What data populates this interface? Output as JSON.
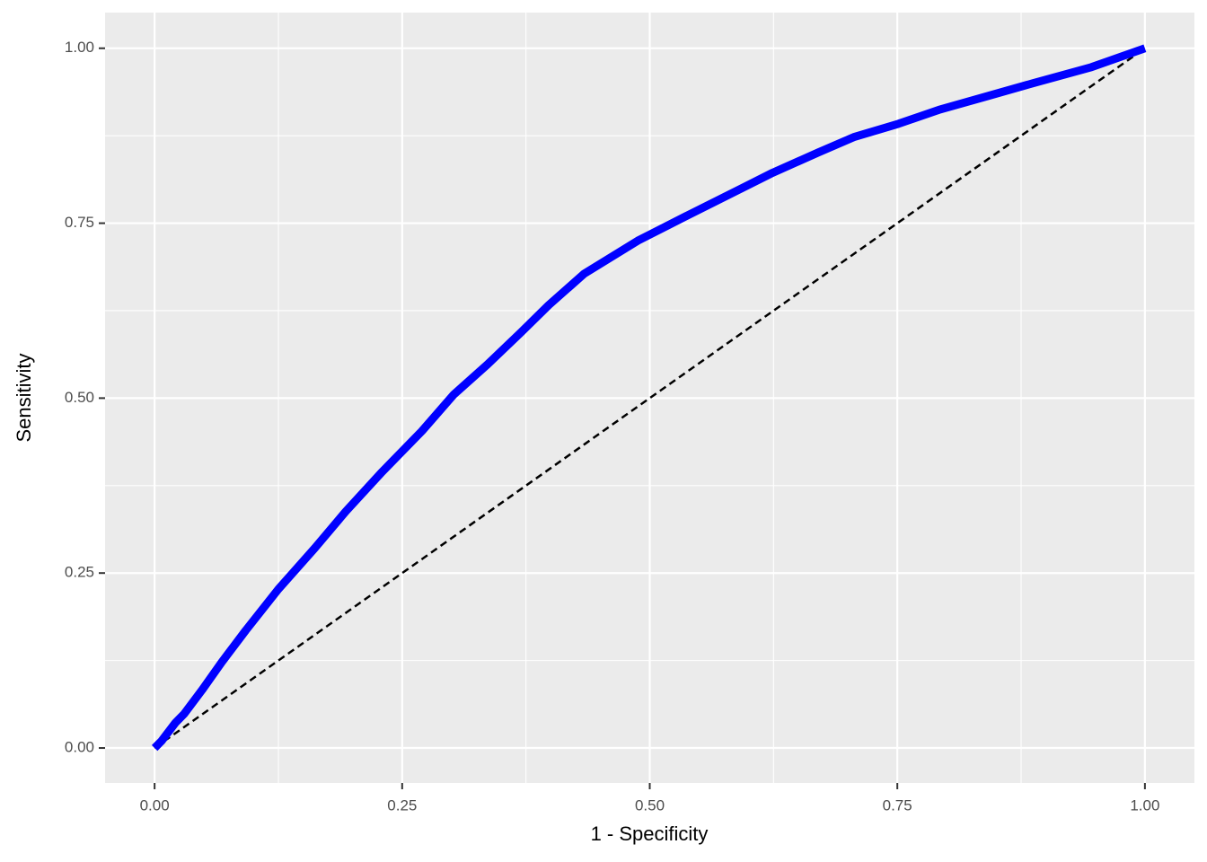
{
  "chart_data": {
    "type": "line",
    "xlabel": "1 - Specificity",
    "ylabel": "Sensitivity",
    "xlim": [
      -0.05,
      1.05
    ],
    "ylim": [
      -0.05,
      1.051
    ],
    "xticks": [
      {
        "value": 0,
        "label": "0.00"
      },
      {
        "value": 0.25,
        "label": "0.25"
      },
      {
        "value": 0.5,
        "label": "0.50"
      },
      {
        "value": 0.75,
        "label": "0.75"
      },
      {
        "value": 1,
        "label": "1.00"
      }
    ],
    "yticks": [
      {
        "value": 0,
        "label": "0.00"
      },
      {
        "value": 0.25,
        "label": "0.25"
      },
      {
        "value": 0.5,
        "label": "0.50"
      },
      {
        "value": 0.75,
        "label": "0.75"
      },
      {
        "value": 1,
        "label": "1.00"
      }
    ],
    "xminor": [
      0.125,
      0.375,
      0.625,
      0.875
    ],
    "yminor": [
      0.125,
      0.375,
      0.625,
      0.875
    ],
    "grid": true,
    "series": [
      {
        "color": "#0000ff",
        "width": 9,
        "dashed": false,
        "x": [
          0,
          0.007,
          0.021,
          0.03,
          0.048,
          0.068,
          0.092,
          0.125,
          0.162,
          0.193,
          0.23,
          0.27,
          0.302,
          0.336,
          0.37,
          0.398,
          0.434,
          0.488,
          0.538,
          0.593,
          0.624,
          0.67,
          0.706,
          0.751,
          0.792,
          0.842,
          0.887,
          0.946,
          1
        ],
        "values": [
          0,
          0.01,
          0.036,
          0.049,
          0.083,
          0.123,
          0.168,
          0.227,
          0.286,
          0.338,
          0.395,
          0.453,
          0.505,
          0.548,
          0.594,
          0.633,
          0.678,
          0.725,
          0.761,
          0.8,
          0.822,
          0.851,
          0.873,
          0.892,
          0.912,
          0.932,
          0.95,
          0.973,
          1
        ]
      },
      {
        "color": "#000000",
        "width": 2.5,
        "dashed": true,
        "x": [
          0,
          1
        ],
        "values": [
          0,
          1
        ]
      }
    ]
  }
}
